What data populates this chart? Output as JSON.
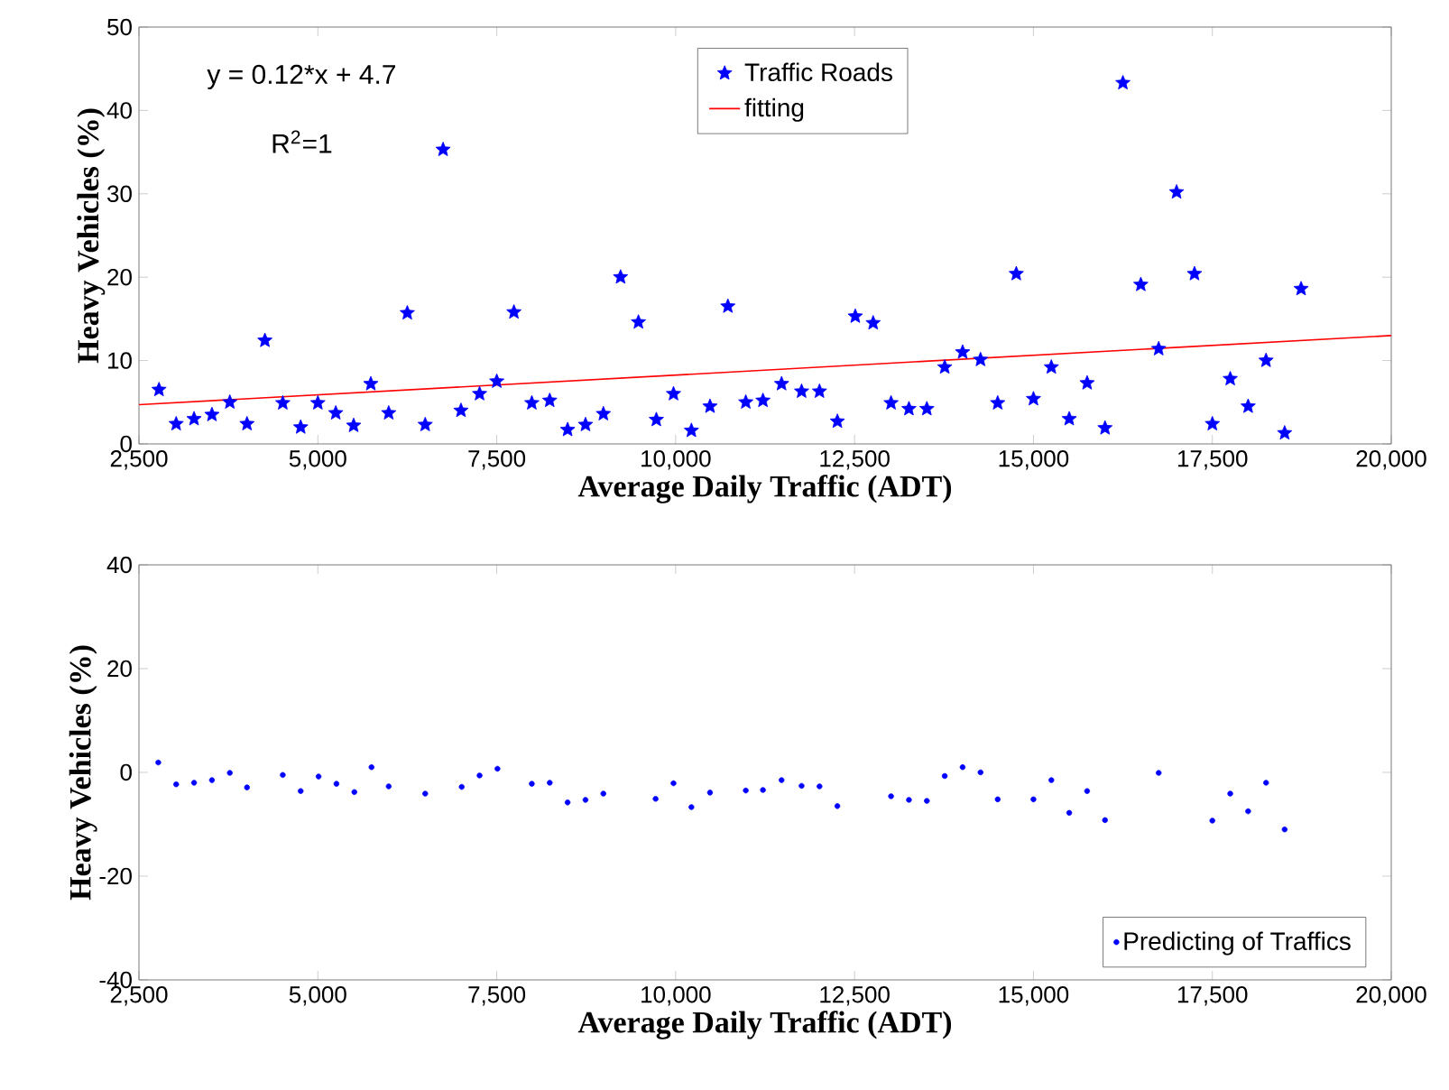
{
  "chart_data": [
    {
      "type": "scatter",
      "xlabel": "Average Daily Traffic (ADT)",
      "ylabel": "Heavy Vehicles (%)",
      "marker": "star",
      "legend": "top",
      "annotations": [
        "y = 0.12*x + 4.7",
        "R$^{2}$=1"
      ],
      "xlim": [
        2500,
        20000
      ],
      "ylim": [
        0,
        50
      ],
      "xticks": [
        {
          "value": 2500,
          "label": "2,500"
        },
        {
          "value": 5000,
          "label": "5,000"
        },
        {
          "value": 7500,
          "label": "7,500"
        },
        {
          "value": 10000,
          "label": "10,000"
        },
        {
          "value": 12500,
          "label": "12,500"
        },
        {
          "value": 15000,
          "label": "15,000"
        },
        {
          "value": 17500,
          "label": "17,500"
        },
        {
          "value": 20000,
          "label": "20,000"
        }
      ],
      "yticks": [
        0,
        10,
        20,
        30,
        40,
        50
      ],
      "series": [
        {
          "name": "Traffic Roads",
          "color": "#0000ff",
          "x": [
            2780,
            3020,
            3270,
            3520,
            3770,
            4010,
            4260,
            4510,
            4760,
            5000,
            5250,
            5500,
            5740,
            5990,
            6250,
            6500,
            6750,
            7000,
            7260,
            7500,
            7740,
            7990,
            8240,
            8490,
            8740,
            8990,
            9230,
            9480,
            9730,
            9970,
            10220,
            10480,
            10730,
            10980,
            11220,
            11480,
            11760,
            12010,
            12260,
            12510,
            12760,
            13010,
            13260,
            13510,
            13760,
            14010,
            14260,
            14500,
            14760,
            15000,
            15250,
            15500,
            15750,
            16000,
            16250,
            16500,
            16750,
            17000,
            17250,
            17500,
            17750,
            18000,
            18250,
            18510,
            18740
          ],
          "values": [
            6.5,
            2.4,
            3.0,
            3.5,
            5.0,
            2.4,
            12.4,
            4.9,
            2.0,
            4.9,
            3.7,
            2.2,
            7.2,
            3.7,
            15.7,
            2.3,
            35.3,
            4.0,
            6.0,
            7.5,
            15.8,
            4.9,
            5.2,
            1.7,
            2.3,
            3.6,
            20.0,
            14.6,
            2.9,
            6.0,
            1.6,
            4.5,
            16.5,
            5.0,
            5.2,
            7.2,
            6.3,
            6.3,
            2.7,
            15.3,
            14.5,
            4.9,
            4.2,
            4.2,
            9.2,
            11.0,
            10.1,
            4.9,
            20.4,
            5.4,
            9.2,
            3.0,
            7.3,
            1.9,
            43.3,
            19.1,
            11.4,
            30.2,
            20.4,
            2.4,
            7.8,
            4.5,
            10.0,
            1.3,
            18.6
          ]
        },
        {
          "name": "fitting",
          "type": "line",
          "marker": "none",
          "color": "#ff0000",
          "x": [
            2500,
            20000
          ],
          "values": [
            4.7,
            13.0
          ]
        }
      ]
    },
    {
      "type": "scatter",
      "xlabel": "Average Daily Traffic (ADT)",
      "ylabel": "Heavy Vehicles (%)",
      "marker": "circle",
      "legend": "bottom right",
      "xlim": [
        2500,
        20000
      ],
      "ylim": [
        -40,
        40
      ],
      "xticks": [
        {
          "value": 2500,
          "label": "2,500"
        },
        {
          "value": 5000,
          "label": "5,000"
        },
        {
          "value": 7500,
          "label": "7,500"
        },
        {
          "value": 10000,
          "label": "10,000"
        },
        {
          "value": 12500,
          "label": "12,500"
        },
        {
          "value": 15000,
          "label": "15,000"
        },
        {
          "value": 17500,
          "label": "17,500"
        },
        {
          "value": 20000,
          "label": "20,000"
        }
      ],
      "yticks": [
        -40,
        -20,
        0,
        20,
        40
      ],
      "series": [
        {
          "name": "Predicting of Traffics",
          "color": "#0000ff",
          "x": [
            2770,
            3020,
            3270,
            3520,
            3770,
            4010,
            4510,
            4760,
            5010,
            5260,
            5510,
            5750,
            5990,
            6500,
            7010,
            7260,
            7510,
            7990,
            8240,
            8490,
            8740,
            8990,
            9720,
            9970,
            10220,
            10480,
            10980,
            11220,
            11480,
            11760,
            12010,
            12260,
            13010,
            13260,
            13510,
            13760,
            14010,
            14260,
            14500,
            15000,
            15250,
            15500,
            15750,
            16000,
            16750,
            17500,
            17750,
            18000,
            18250,
            18510
          ],
          "values": [
            1.9,
            -2.3,
            -2.0,
            -1.5,
            -0.1,
            -2.9,
            -0.5,
            -3.6,
            -0.8,
            -2.2,
            -3.8,
            1.0,
            -2.7,
            -4.1,
            -2.8,
            -0.6,
            0.7,
            -2.2,
            -2.0,
            -5.8,
            -5.3,
            -4.1,
            -5.1,
            -2.1,
            -6.7,
            -3.9,
            -3.5,
            -3.4,
            -1.5,
            -2.6,
            -2.7,
            -6.5,
            -4.6,
            -5.3,
            -5.5,
            -0.7,
            1.0,
            0.0,
            -5.2,
            -5.2,
            -1.5,
            -7.8,
            -3.6,
            -9.2,
            -0.1,
            -9.3,
            -4.1,
            -7.5,
            -2.0,
            -11.0
          ]
        }
      ]
    }
  ]
}
